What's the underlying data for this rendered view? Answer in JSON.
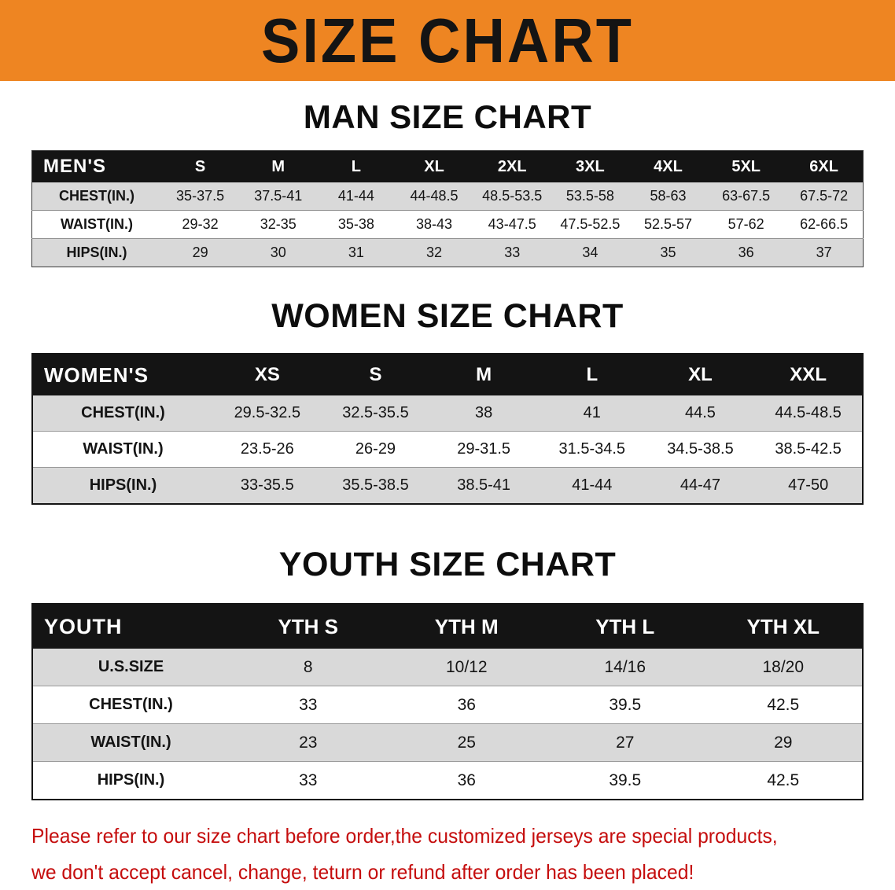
{
  "banner": {
    "title": "SIZE CHART",
    "bg_color": "#EE8522",
    "text_color": "#141414"
  },
  "sections": [
    {
      "heading": "MAN SIZE CHART",
      "table": {
        "header": [
          "MEN'S",
          "S",
          "M",
          "L",
          "XL",
          "2XL",
          "3XL",
          "4XL",
          "5XL",
          "6XL"
        ],
        "rows": [
          [
            "CHEST(IN.)",
            "35-37.5",
            "37.5-41",
            "41-44",
            "44-48.5",
            "48.5-53.5",
            "53.5-58",
            "58-63",
            "63-67.5",
            "67.5-72"
          ],
          [
            "WAIST(IN.)",
            "29-32",
            "32-35",
            "35-38",
            "38-43",
            "43-47.5",
            "47.5-52.5",
            "52.5-57",
            "57-62",
            "62-66.5"
          ],
          [
            "HIPS(IN.)",
            "29",
            "30",
            "31",
            "32",
            "33",
            "34",
            "35",
            "36",
            "37"
          ]
        ]
      }
    },
    {
      "heading": "WOMEN SIZE CHART",
      "table": {
        "header": [
          "WOMEN'S",
          "XS",
          "S",
          "M",
          "L",
          "XL",
          "XXL"
        ],
        "rows": [
          [
            "CHEST(IN.)",
            "29.5-32.5",
            "32.5-35.5",
            "38",
            "41",
            "44.5",
            "44.5-48.5"
          ],
          [
            "WAIST(IN.)",
            "23.5-26",
            "26-29",
            "29-31.5",
            "31.5-34.5",
            "34.5-38.5",
            "38.5-42.5"
          ],
          [
            "HIPS(IN.)",
            "33-35.5",
            "35.5-38.5",
            "38.5-41",
            "41-44",
            "44-47",
            "47-50"
          ]
        ]
      }
    },
    {
      "heading": "YOUTH SIZE CHART",
      "table": {
        "header": [
          "YOUTH",
          "YTH S",
          "YTH M",
          "YTH L",
          "YTH XL"
        ],
        "rows": [
          [
            "U.S.SIZE",
            "8",
            "10/12",
            "14/16",
            "18/20"
          ],
          [
            "CHEST(IN.)",
            "33",
            "36",
            "39.5",
            "42.5"
          ],
          [
            "WAIST(IN.)",
            "23",
            "25",
            "27",
            "29"
          ],
          [
            "HIPS(IN.)",
            "33",
            "36",
            "39.5",
            "42.5"
          ]
        ]
      }
    }
  ],
  "footer": {
    "line1": "Please refer to our size chart before order,the customized jerseys are special products,",
    "line2": "we don't accept cancel, change, teturn or refund after order has been placed!",
    "text_color": "#C50D0D"
  },
  "colors": {
    "banner_orange": "#EE8522",
    "table_header_black": "#141414",
    "row_gray": "#D9D9D9",
    "note_red": "#C50D0D"
  }
}
